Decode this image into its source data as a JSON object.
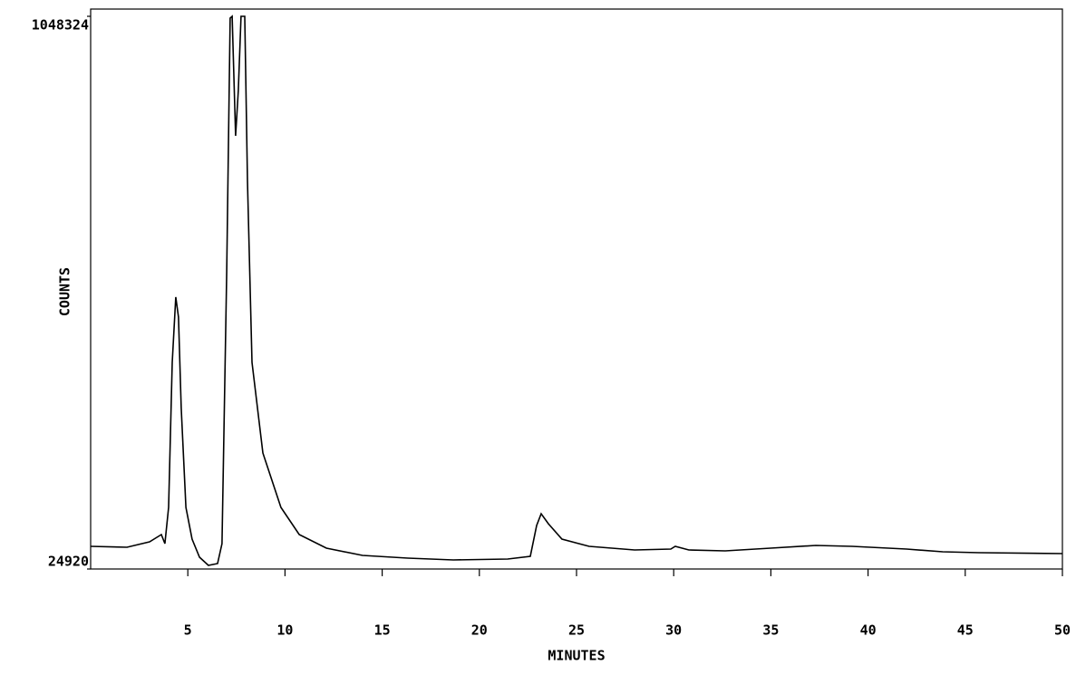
{
  "chart_data": {
    "type": "line",
    "x_label": "MINUTES",
    "y_label": "COUNTS",
    "xlim": [
      0,
      50
    ],
    "ylim": [
      24920,
      1048324
    ],
    "xticks": [
      5,
      10,
      15,
      20,
      25,
      30,
      35,
      40,
      45,
      50
    ],
    "yticks": [
      24920,
      1048324
    ],
    "series": [
      {
        "color": "#000000",
        "x": [
          0,
          1.87,
          3.03,
          3.64,
          3.82,
          4.01,
          4.2,
          4.38,
          4.52,
          4.66,
          4.9,
          5.22,
          5.6,
          6.06,
          6.53,
          6.76,
          7.0,
          7.18,
          7.28,
          7.46,
          7.6,
          7.74,
          7.93,
          8.07,
          8.3,
          8.86,
          9.79,
          10.73,
          12.13,
          13.99,
          16.32,
          18.66,
          21.46,
          22.62,
          22.95,
          23.18,
          23.55,
          24.25,
          25.65,
          27.99,
          29.85,
          30.08,
          30.78,
          32.65,
          34.98,
          37.31,
          39.18,
          41.98,
          43.84,
          45.71,
          50
        ],
        "values": [
          66870,
          65190,
          75260,
          88680,
          71900,
          139020,
          407500,
          528320,
          491400,
          323600,
          139020,
          80300,
          46700,
          31630,
          34990,
          71900,
          575300,
          1045000,
          1048324,
          827000,
          910900,
          1048324,
          1048324,
          743100,
          407500,
          239700,
          139020,
          88680,
          63500,
          50090,
          45060,
          41700,
          43380,
          48410,
          105460,
          127280,
          108820,
          80300,
          66870,
          60160,
          61840,
          66870,
          60160,
          58480,
          63500,
          68550,
          66870,
          61840,
          56800,
          55120,
          53450
        ]
      }
    ]
  }
}
